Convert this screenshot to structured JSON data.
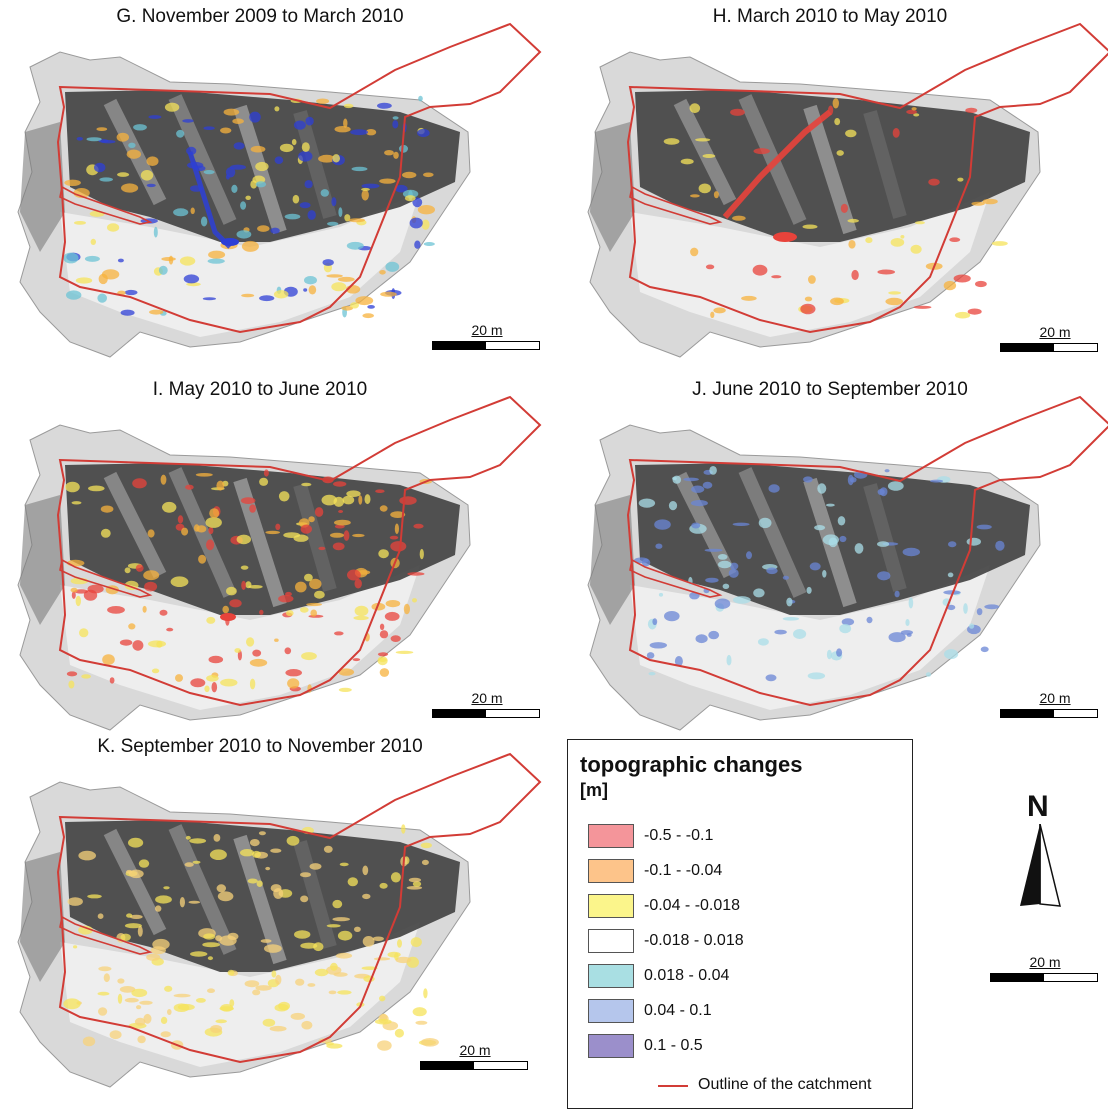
{
  "panels": [
    {
      "id": "G",
      "title": "G. November 2009 to March 2010",
      "scale_label": "20 m",
      "dominant": [
        "#f7b23c",
        "#f5e35a",
        "#2d3fd6",
        "#6cc3d4"
      ]
    },
    {
      "id": "H",
      "title": "H. March 2010 to May 2010",
      "scale_label": "20 m",
      "dominant": [
        "#e8433b",
        "#f5e35a",
        "#f7b23c"
      ]
    },
    {
      "id": "I",
      "title": "I. May 2010 to June 2010",
      "scale_label": "20 m",
      "dominant": [
        "#f7b23c",
        "#f5e35a",
        "#e8433b"
      ]
    },
    {
      "id": "J",
      "title": "J. June 2010 to September 2010",
      "scale_label": "20 m",
      "dominant": [
        "#a9dde8",
        "#6a86d6"
      ]
    },
    {
      "id": "K",
      "title": "K. September 2010 to November 2010",
      "scale_label": "20 m",
      "dominant": [
        "#f5e35a",
        "#f7d27a"
      ]
    }
  ],
  "legend": {
    "title": "topographic changes",
    "unit": "[m]",
    "items": [
      {
        "label": "-0.5 - -0.1",
        "color": "#f4959a"
      },
      {
        "label": "-0.1 - -0.04",
        "color": "#fdc48a"
      },
      {
        "label": "-0.04 - -0.018",
        "color": "#fbf58b"
      },
      {
        "label": "-0.018 - 0.018",
        "color": "#ffffff"
      },
      {
        "label": "0.018 - 0.04",
        "color": "#a9dfe3"
      },
      {
        "label": "0.04 - 0.1",
        "color": "#b5c6ec"
      },
      {
        "label": "0.1 - 0.5",
        "color": "#9b8fcb"
      }
    ],
    "outline_label": "Outline of the catchment",
    "outline_color": "#d23c36"
  },
  "north_arrow": {
    "label": "N"
  },
  "extra_scale": {
    "label": "20 m"
  }
}
